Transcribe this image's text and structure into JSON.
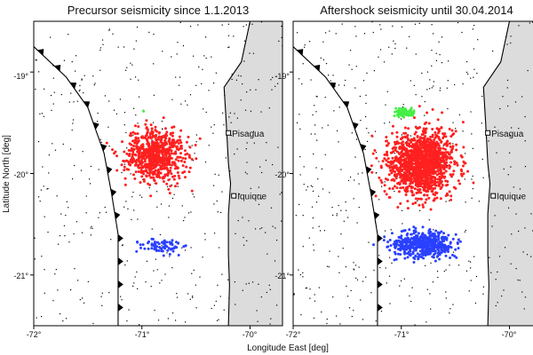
{
  "figure": {
    "xlabel": "Longitude East [deg]",
    "ylabel": "Latitude North [deg]"
  },
  "panels": [
    {
      "title": "Precursor seismicity since 1.1.2013",
      "x_ticks": [
        "-72°",
        "-71°",
        "-70°"
      ],
      "y_ticks": [
        "-19°",
        "-20°",
        "-21°"
      ],
      "cities": [
        {
          "name": "Pisagua",
          "lon": -70.2,
          "lat": -19.6
        },
        {
          "name": "Iquique",
          "lon": -70.15,
          "lat": -20.22
        }
      ]
    },
    {
      "title": "Aftershock seismicity until 30.04.2014",
      "x_ticks": [
        "-72°",
        "-71°",
        "-70°"
      ],
      "y_ticks": [
        "-19°",
        "-20°",
        "-21°"
      ],
      "cities": [
        {
          "name": "Pisagua",
          "lon": -70.2,
          "lat": -19.6
        },
        {
          "name": "Iquique",
          "lon": -70.15,
          "lat": -20.22
        }
      ]
    }
  ],
  "chart_data": {
    "type": "scatter",
    "xlim": [
      -72,
      -69.7
    ],
    "ylim": [
      -21.5,
      -18.5
    ],
    "colors": {
      "background_events": "#000000",
      "red_cluster": "#ff2020",
      "blue_cluster": "#2a40ff",
      "green_cluster": "#44ee44",
      "land": "#dcdcdc"
    },
    "clusters": [
      {
        "panel": 0,
        "name": "red_cluster",
        "center": [
          -70.88,
          -19.82
        ],
        "spread": [
          0.22,
          0.2
        ],
        "count": 720
      },
      {
        "panel": 0,
        "name": "blue_cluster",
        "center": [
          -70.82,
          -20.72
        ],
        "spread": [
          0.18,
          0.06
        ],
        "count": 70
      },
      {
        "panel": 0,
        "name": "green_cluster",
        "center": [
          -70.98,
          -19.38
        ],
        "spread": [
          0.01,
          0.01
        ],
        "count": 1
      },
      {
        "panel": 1,
        "name": "red_cluster",
        "center": [
          -70.82,
          -19.9
        ],
        "spread": [
          0.24,
          0.26
        ],
        "count": 1400
      },
      {
        "panel": 1,
        "name": "blue_cluster",
        "center": [
          -70.8,
          -20.7
        ],
        "spread": [
          0.22,
          0.1
        ],
        "count": 520
      },
      {
        "panel": 1,
        "name": "green_cluster",
        "center": [
          -70.98,
          -19.4
        ],
        "spread": [
          0.08,
          0.035
        ],
        "count": 70
      }
    ],
    "background_events": {
      "count_per_panel": 430
    },
    "coastline": [
      [
        -70.0,
        -18.5
      ],
      [
        -70.08,
        -18.9
      ],
      [
        -70.24,
        -19.15
      ],
      [
        -70.22,
        -19.5
      ],
      [
        -70.2,
        -19.9
      ],
      [
        -70.18,
        -20.1
      ],
      [
        -70.2,
        -20.4
      ],
      [
        -70.2,
        -20.8
      ],
      [
        -70.19,
        -21.1
      ],
      [
        -70.2,
        -21.5
      ]
    ],
    "trench": [
      [
        -72.0,
        -18.75
      ],
      [
        -71.7,
        -19.05
      ],
      [
        -71.5,
        -19.35
      ],
      [
        -71.35,
        -19.8
      ],
      [
        -71.28,
        -20.2
      ],
      [
        -71.22,
        -20.6
      ],
      [
        -71.22,
        -21.0
      ],
      [
        -71.22,
        -21.5
      ]
    ]
  }
}
